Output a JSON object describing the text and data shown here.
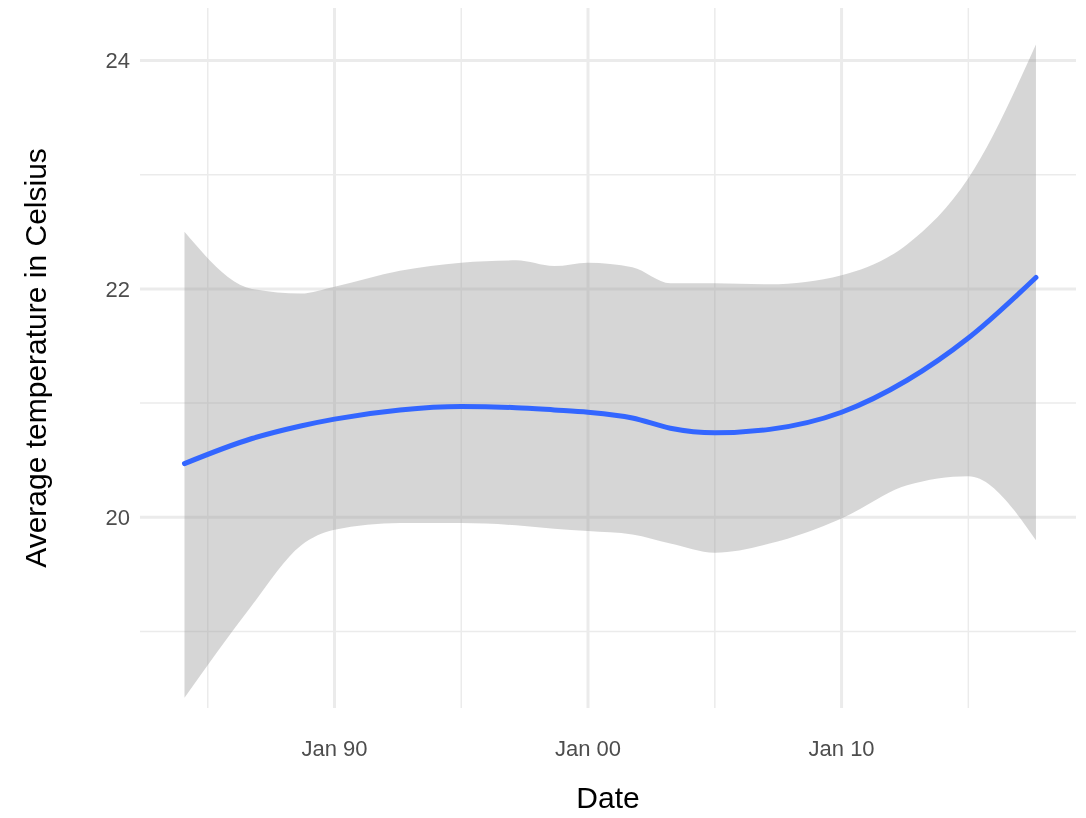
{
  "chart_data": {
    "type": "line",
    "xlabel": "Date",
    "ylabel": "Average temperature in Celsius",
    "x": [
      "1984-02",
      "1986-10",
      "1988-09",
      "1990-01",
      "1992-08",
      "1995-01",
      "1997-03",
      "1998-09",
      "2000-01",
      "2001-10",
      "2003-04",
      "2005-01",
      "2007-03",
      "2010-01",
      "2012-08",
      "2015-01",
      "2017-09"
    ],
    "series": [
      {
        "color": "#3366ff",
        "values": [
          20.47,
          20.69,
          20.8,
          20.86,
          20.94,
          20.97,
          20.96,
          20.94,
          20.92,
          20.87,
          20.78,
          20.74,
          20.77,
          20.92,
          21.2,
          21.57,
          22.1
        ],
        "lower": [
          18.42,
          19.23,
          19.75,
          19.89,
          19.95,
          19.95,
          19.93,
          19.9,
          19.88,
          19.85,
          19.77,
          19.69,
          19.77,
          19.99,
          20.28,
          20.36,
          19.8
        ],
        "upper": [
          22.5,
          22.0,
          21.96,
          22.02,
          22.16,
          22.23,
          22.25,
          22.2,
          22.23,
          22.19,
          22.05,
          22.05,
          22.04,
          22.12,
          22.39,
          22.97,
          24.14
        ]
      }
    ],
    "xlim": [
      "1982-05",
      "2019-04"
    ],
    "xticks": [
      {
        "value": "1985-01",
        "label": null
      },
      {
        "value": "1990-01",
        "label": "Jan 90"
      },
      {
        "value": "1995-01",
        "label": null
      },
      {
        "value": "2000-01",
        "label": "Jan 00"
      },
      {
        "value": "2005-01",
        "label": null
      },
      {
        "value": "2010-01",
        "label": "Jan 10"
      },
      {
        "value": "2015-01",
        "label": null
      }
    ],
    "ylim": [
      18.33,
      24.46
    ],
    "yticks": [
      {
        "value": 19,
        "label": null
      },
      20,
      {
        "value": 21,
        "label": null
      },
      22,
      {
        "value": 23,
        "label": null
      },
      24
    ],
    "grid": true,
    "line_style": "solid",
    "marker": "none"
  }
}
